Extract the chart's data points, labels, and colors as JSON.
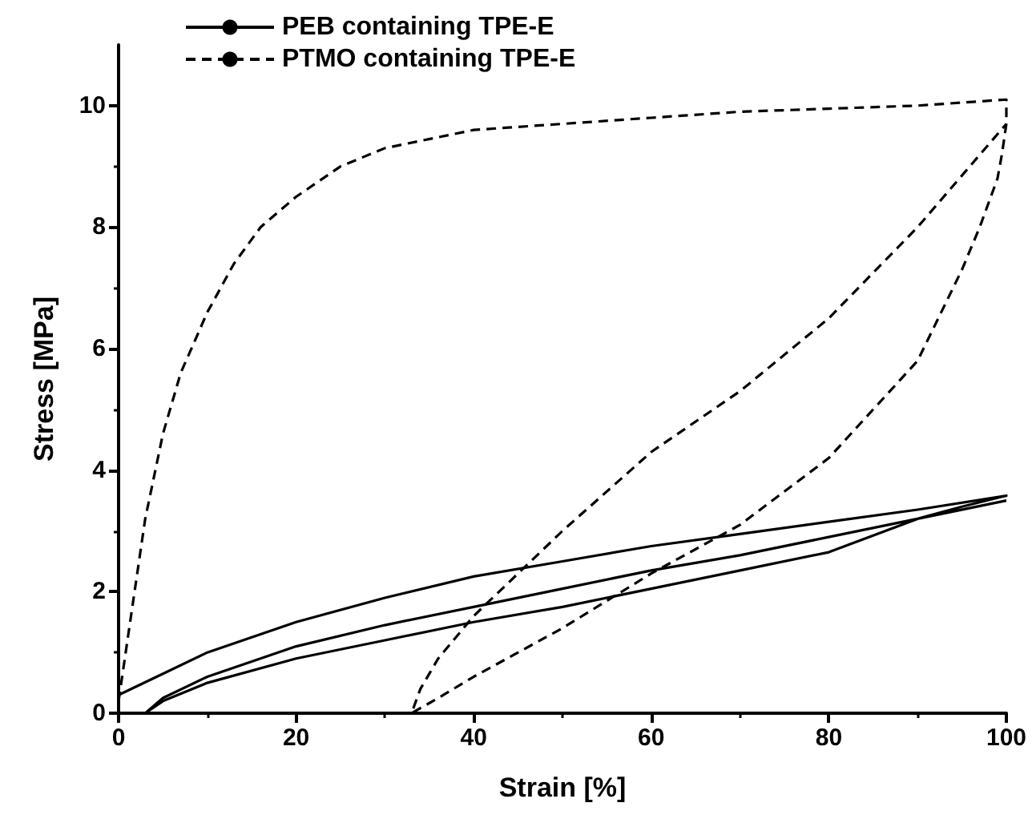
{
  "chart_data": {
    "type": "line",
    "xlabel": "Strain [%]",
    "ylabel": "Stress [MPa]",
    "xlim": [
      0,
      100
    ],
    "ylim": [
      0,
      11
    ],
    "xticks": [
      0,
      20,
      40,
      60,
      80,
      100
    ],
    "yticks": [
      0,
      2,
      4,
      6,
      8,
      10
    ],
    "grid": false,
    "legend": "top left",
    "marker": "none",
    "series": [
      {
        "name": "PEB containing TPE-E",
        "color": "#000000",
        "line_style": "solid",
        "x": [
          0,
          5,
          10,
          20,
          30,
          40,
          50,
          60,
          70,
          80,
          90,
          100,
          95,
          90,
          80,
          70,
          60,
          50,
          40,
          30,
          20,
          10,
          5,
          3,
          5,
          10,
          20,
          30,
          40,
          50,
          60,
          70,
          80,
          90,
          100
        ],
        "values": [
          0.3,
          0.65,
          1.0,
          1.5,
          1.9,
          2.25,
          2.5,
          2.75,
          2.95,
          3.15,
          3.35,
          3.58,
          3.4,
          3.2,
          2.65,
          2.35,
          2.05,
          1.75,
          1.5,
          1.2,
          0.9,
          0.5,
          0.2,
          0,
          0.25,
          0.6,
          1.1,
          1.45,
          1.75,
          2.05,
          2.35,
          2.6,
          2.9,
          3.2,
          3.5
        ]
      },
      {
        "name": "PTMO containing TPE-E",
        "color": "#000000",
        "line_style": "dashed",
        "x": [
          0,
          1,
          2,
          3,
          5,
          7,
          10,
          13,
          16,
          20,
          25,
          30,
          40,
          50,
          60,
          70,
          80,
          90,
          100,
          100,
          99.5,
          99,
          97,
          95,
          90,
          80,
          70,
          60,
          50,
          40,
          36,
          33,
          34,
          36,
          40,
          50,
          60,
          70,
          80,
          90,
          100
        ],
        "values": [
          0.2,
          1.2,
          2.2,
          3.2,
          4.6,
          5.6,
          6.6,
          7.4,
          8.0,
          8.5,
          9.0,
          9.3,
          9.6,
          9.7,
          9.8,
          9.9,
          9.95,
          10.0,
          10.1,
          9.7,
          9.2,
          8.8,
          8.0,
          7.3,
          5.8,
          4.2,
          3.1,
          2.3,
          1.4,
          0.6,
          0.25,
          0,
          0.4,
          0.9,
          1.6,
          3.0,
          4.3,
          5.3,
          6.5,
          8.0,
          9.7
        ]
      }
    ]
  }
}
